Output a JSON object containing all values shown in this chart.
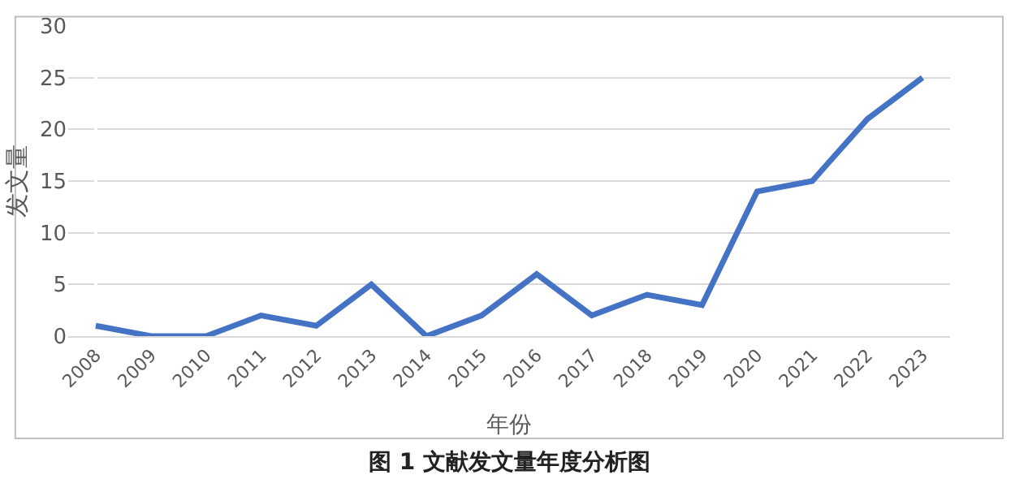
{
  "chart_data": {
    "type": "line",
    "title": "图 1 文献发文量年度分析图",
    "xlabel": "年份",
    "ylabel": "发文量",
    "categories": [
      "2008",
      "2009",
      "2010",
      "2011",
      "2012",
      "2013",
      "2014",
      "2015",
      "2016",
      "2017",
      "2018",
      "2019",
      "2020",
      "2021",
      "2022",
      "2023"
    ],
    "series": [
      {
        "color": "#4472c4",
        "values": [
          1,
          0,
          0,
          2,
          1,
          5,
          0,
          2,
          6,
          2,
          4,
          3,
          14,
          15,
          21,
          25
        ]
      }
    ],
    "ylim": [
      0,
      30
    ],
    "yticks": [
      0,
      5,
      10,
      15,
      20,
      25,
      30
    ],
    "grid": "y",
    "marker": "none",
    "line_style": "solid"
  }
}
